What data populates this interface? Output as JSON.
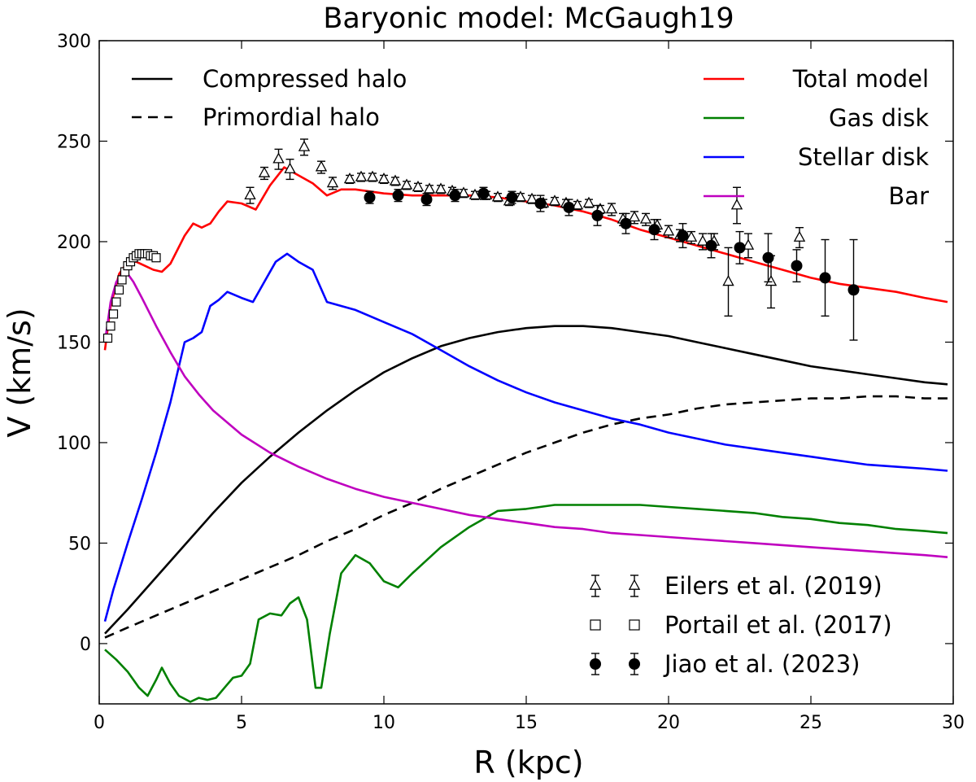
{
  "chart_data": {
    "type": "line",
    "title": "Baryonic model: McGaugh19",
    "xlabel": "R (kpc)",
    "ylabel": "V (km/s)",
    "xlim": [
      0,
      30
    ],
    "ylim": [
      -30,
      300
    ],
    "xticks": [
      0,
      5,
      10,
      15,
      20,
      25,
      30
    ],
    "yticks": [
      0,
      50,
      100,
      150,
      200,
      250,
      300
    ],
    "grid": false,
    "series": [
      {
        "name": "Compressed halo",
        "color": "#000000",
        "dash": "solid",
        "legend": "top-left",
        "x": [
          0.2,
          1,
          2,
          3,
          4,
          5,
          6,
          7,
          8,
          9,
          10,
          11,
          12,
          13,
          14,
          15,
          16,
          17,
          18,
          19,
          20,
          21,
          22,
          23,
          24,
          25,
          26,
          27,
          28,
          29,
          29.8
        ],
        "y": [
          5,
          17,
          33,
          49,
          65,
          80,
          93,
          105,
          116,
          126,
          135,
          142,
          148,
          152,
          155,
          157,
          158,
          158,
          157,
          155,
          153,
          150,
          147,
          144,
          141,
          138,
          136,
          134,
          132,
          130,
          129
        ]
      },
      {
        "name": "Primordial halo",
        "color": "#000000",
        "dash": "dashed",
        "legend": "top-left",
        "x": [
          0.2,
          1,
          2,
          3,
          4,
          5,
          6,
          7,
          8,
          9,
          10,
          11,
          12,
          13,
          14,
          15,
          16,
          17,
          18,
          19,
          20,
          21,
          22,
          23,
          24,
          25,
          26,
          27,
          28,
          29,
          29.8
        ],
        "y": [
          3,
          8,
          14,
          20,
          26,
          32,
          38,
          44,
          51,
          57,
          64,
          70,
          77,
          83,
          89,
          95,
          100,
          105,
          109,
          112,
          114,
          117,
          119,
          120,
          121,
          122,
          122,
          123,
          123,
          122,
          122
        ]
      },
      {
        "name": "Total model",
        "color": "#ff0000",
        "dash": "solid",
        "legend": "top-right",
        "x": [
          0.2,
          0.4,
          0.7,
          1.0,
          1.3,
          1.6,
          1.9,
          2.2,
          2.5,
          3.0,
          3.3,
          3.6,
          3.9,
          4.2,
          4.5,
          5.0,
          5.5,
          6.0,
          6.5,
          7.0,
          7.5,
          8.0,
          8.5,
          9.0,
          10,
          11,
          12,
          13,
          14,
          15,
          16,
          17,
          18,
          19,
          20,
          21,
          22,
          23,
          24,
          25,
          26,
          27,
          28,
          29,
          29.8
        ],
        "y": [
          146,
          168,
          184,
          190,
          190,
          188,
          186,
          185,
          189,
          203,
          209,
          207,
          209,
          215,
          220,
          219,
          216,
          228,
          237,
          233,
          229,
          223,
          226,
          226,
          224,
          223,
          223,
          223,
          222,
          220,
          218,
          215,
          211,
          206,
          202,
          198,
          194,
          190,
          186,
          182,
          179,
          177,
          175,
          172,
          170
        ]
      },
      {
        "name": "Gas disk",
        "color": "#008000",
        "dash": "solid",
        "legend": "top-right",
        "x": [
          0.2,
          0.6,
          1.0,
          1.4,
          1.7,
          2.0,
          2.2,
          2.5,
          2.8,
          3.2,
          3.5,
          3.8,
          4.1,
          4.4,
          4.7,
          5.0,
          5.3,
          5.6,
          6.0,
          6.4,
          6.7,
          7.0,
          7.3,
          7.6,
          7.8,
          8.1,
          8.5,
          9.0,
          9.5,
          10,
          10.5,
          11,
          12,
          13,
          14,
          15,
          16,
          17,
          18,
          19,
          20,
          21,
          22,
          23,
          24,
          25,
          26,
          27,
          28,
          29,
          29.8
        ],
        "y": [
          -3,
          -8,
          -14,
          -22,
          -26,
          -18,
          -12,
          -20,
          -26,
          -29,
          -27,
          -28,
          -27,
          -22,
          -17,
          -16,
          -10,
          12,
          15,
          14,
          20,
          23,
          12,
          -22,
          -22,
          5,
          35,
          44,
          40,
          31,
          28,
          35,
          48,
          58,
          66,
          67,
          69,
          69,
          69,
          69,
          68,
          67,
          66,
          65,
          63,
          62,
          60,
          59,
          57,
          56,
          55
        ]
      },
      {
        "name": "Stellar disk",
        "color": "#0000ff",
        "dash": "solid",
        "legend": "top-right",
        "x": [
          0.2,
          0.5,
          1.0,
          1.5,
          2.0,
          2.5,
          3.0,
          3.3,
          3.6,
          3.9,
          4.2,
          4.5,
          5.0,
          5.4,
          5.8,
          6.2,
          6.6,
          7.0,
          7.5,
          8.0,
          9.0,
          10,
          11,
          12,
          13,
          14,
          15,
          16,
          17,
          18,
          19,
          20,
          21,
          22,
          23,
          24,
          25,
          26,
          27,
          28,
          29,
          29.8
        ],
        "y": [
          11,
          27,
          50,
          72,
          95,
          120,
          150,
          152,
          155,
          168,
          171,
          175,
          172,
          170,
          180,
          190,
          194,
          190,
          186,
          170,
          166,
          160,
          154,
          146,
          138,
          131,
          125,
          120,
          116,
          112,
          109,
          105,
          102,
          99,
          97,
          95,
          93,
          91,
          89,
          88,
          87,
          86
        ]
      },
      {
        "name": "Bar",
        "color": "#bf00bf",
        "dash": "solid",
        "legend": "top-right",
        "x": [
          0.2,
          0.4,
          0.6,
          0.8,
          1.0,
          1.2,
          1.5,
          2.0,
          2.5,
          3.0,
          3.5,
          4.0,
          5.0,
          6.0,
          7.0,
          8.0,
          9.0,
          10,
          11,
          12,
          13,
          14,
          15,
          16,
          17,
          18,
          19,
          20,
          21,
          22,
          23,
          24,
          25,
          26,
          27,
          28,
          29,
          29.8
        ],
        "y": [
          150,
          170,
          180,
          184,
          184,
          180,
          172,
          158,
          145,
          133,
          124,
          116,
          104,
          95,
          88,
          82,
          77,
          73,
          70,
          67,
          64,
          62,
          60,
          58,
          57,
          55,
          54,
          53,
          52,
          51,
          50,
          49,
          48,
          47,
          46,
          45,
          44,
          43
        ]
      }
    ],
    "observations": [
      {
        "name": "Eilers et al. (2019)",
        "marker": "open-triangle",
        "legend": "bottom-right",
        "x": [
          5.3,
          5.8,
          6.3,
          6.7,
          7.2,
          7.8,
          8.2,
          8.8,
          9.2,
          9.6,
          10.0,
          10.4,
          10.8,
          11.2,
          11.6,
          12.0,
          12.4,
          12.8,
          13.2,
          13.6,
          14.0,
          14.4,
          14.8,
          15.2,
          15.6,
          16.0,
          16.4,
          16.8,
          17.2,
          17.6,
          18.0,
          18.4,
          18.8,
          19.2,
          19.6,
          20.0,
          20.4,
          20.8,
          21.2,
          21.6,
          22.1,
          22.4,
          22.8,
          23.6,
          24.6
        ],
        "y": [
          223,
          234,
          241,
          236,
          247,
          237,
          229,
          231,
          232,
          232,
          231,
          230,
          228,
          227,
          226,
          226,
          225,
          224,
          223,
          223,
          222,
          220,
          222,
          221,
          219,
          220,
          219,
          218,
          219,
          216,
          216,
          211,
          212,
          211,
          208,
          205,
          203,
          202,
          200,
          200,
          180,
          218,
          198,
          180,
          202
        ],
        "err": [
          4,
          3,
          5,
          5,
          4,
          3,
          3,
          2,
          2,
          2,
          2,
          2,
          2,
          2,
          2,
          2,
          2,
          2,
          2,
          2,
          2,
          2,
          2,
          2,
          2,
          2,
          2,
          2,
          2,
          2,
          3,
          3,
          3,
          3,
          3,
          3,
          3,
          3,
          4,
          4,
          17,
          9,
          6,
          13,
          5
        ]
      },
      {
        "name": "Portail et al. (2017)",
        "marker": "open-square",
        "legend": "bottom-right",
        "x": [
          0.3,
          0.4,
          0.5,
          0.6,
          0.7,
          0.8,
          0.9,
          1.0,
          1.1,
          1.2,
          1.3,
          1.4,
          1.5,
          1.6,
          1.7,
          1.8,
          1.9,
          2.0
        ],
        "y": [
          152,
          158,
          164,
          170,
          176,
          181,
          185,
          188,
          190,
          192,
          193,
          194,
          194,
          194,
          194,
          193,
          193,
          192
        ]
      },
      {
        "name": "Jiao et al. (2023)",
        "marker": "filled-circle",
        "legend": "bottom-right",
        "x": [
          9.5,
          10.5,
          11.5,
          12.5,
          13.5,
          14.5,
          15.5,
          16.5,
          17.5,
          18.5,
          19.5,
          20.5,
          21.5,
          22.5,
          23.5,
          24.5,
          25.5,
          26.5
        ],
        "y": [
          222,
          223,
          221,
          223,
          224,
          222,
          219,
          217,
          213,
          209,
          206,
          203,
          198,
          197,
          192,
          188,
          182,
          176
        ],
        "err": [
          3,
          3,
          3,
          3,
          3,
          3,
          4,
          4,
          5,
          5,
          5,
          6,
          6,
          8,
          12,
          8,
          19,
          25
        ]
      }
    ]
  }
}
